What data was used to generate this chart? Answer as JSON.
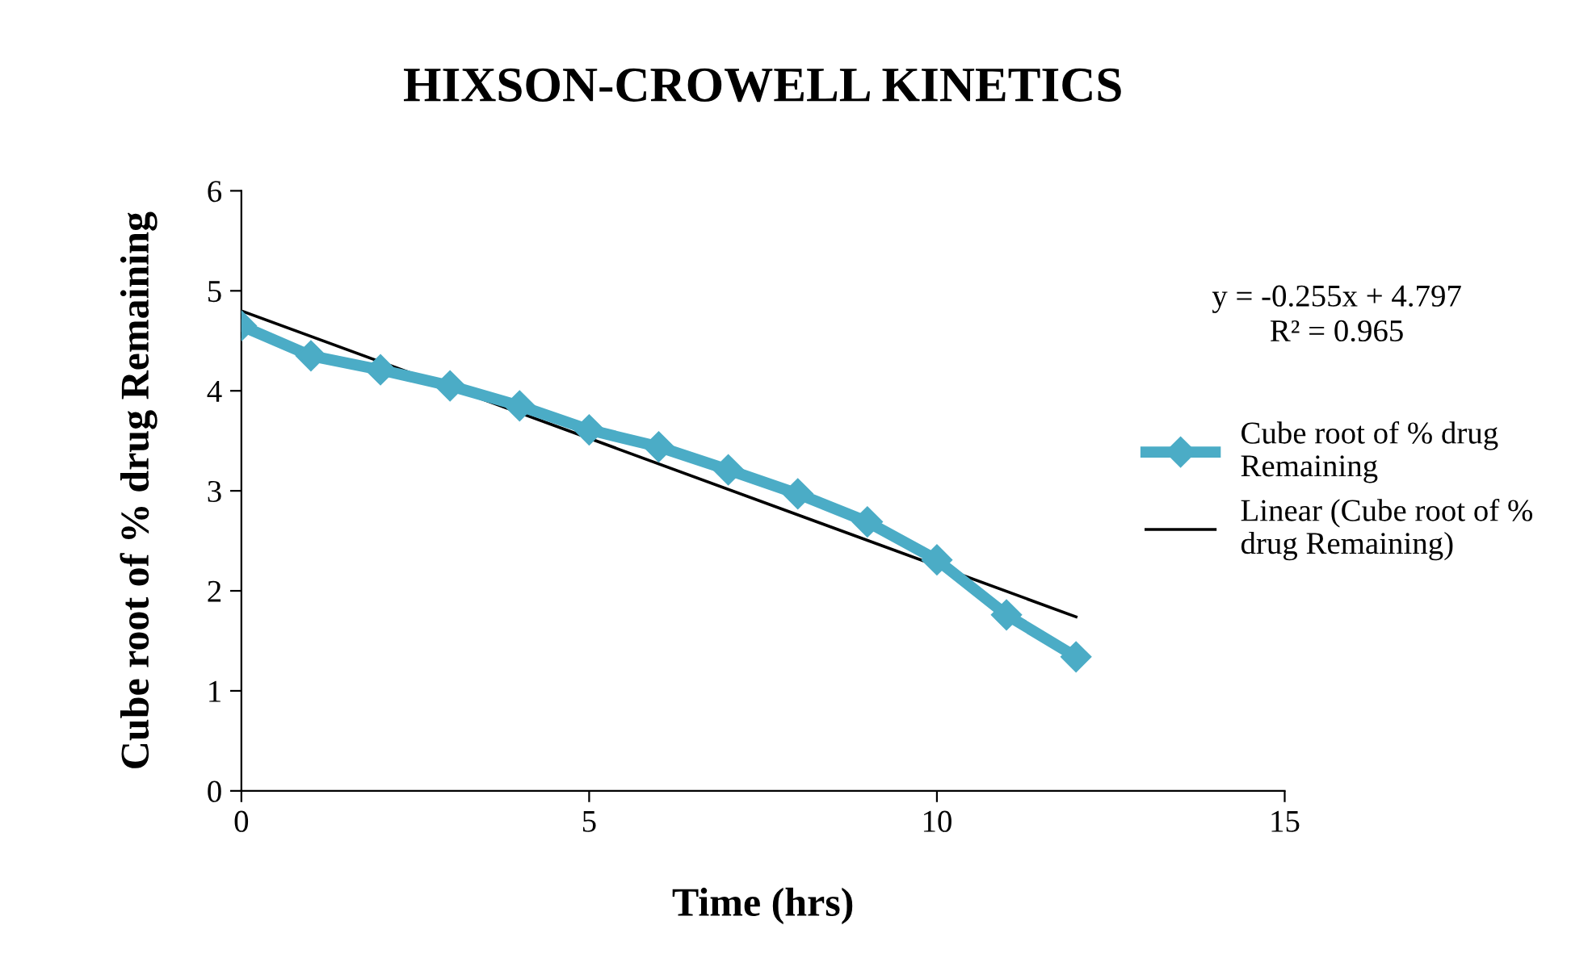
{
  "chart_data": {
    "type": "line",
    "title": "HIXSON-CROWELL KINETICS",
    "xlabel": "Time (hrs)",
    "ylabel": "Cube root of % drug Remaining",
    "xlim": [
      0,
      15
    ],
    "xticks": [
      0,
      5,
      10,
      15
    ],
    "ylim": [
      0,
      6
    ],
    "yticks": [
      0,
      1,
      2,
      3,
      4,
      5,
      6
    ],
    "x": [
      0,
      1,
      2,
      3,
      4,
      5,
      6,
      7,
      8,
      9,
      10,
      11,
      12
    ],
    "series": [
      {
        "name": "Cube root of % drug Remaining",
        "color": "#4bacc6",
        "marker": "diamond",
        "line_style": "solid",
        "values": [
          4.65,
          4.35,
          4.21,
          4.05,
          3.85,
          3.61,
          3.44,
          3.21,
          2.97,
          2.69,
          2.31,
          1.76,
          1.34
        ]
      },
      {
        "name": "Linear (Cube root of % drug Remaining)",
        "color": "#000000",
        "marker": "none",
        "line_style": "solid",
        "x": [
          0,
          12
        ],
        "values": [
          4.8,
          1.74
        ]
      }
    ],
    "annotations": [
      "y = -0.255x + 4.797",
      "R² = 0.965"
    ],
    "grid": false,
    "legend": "right"
  }
}
